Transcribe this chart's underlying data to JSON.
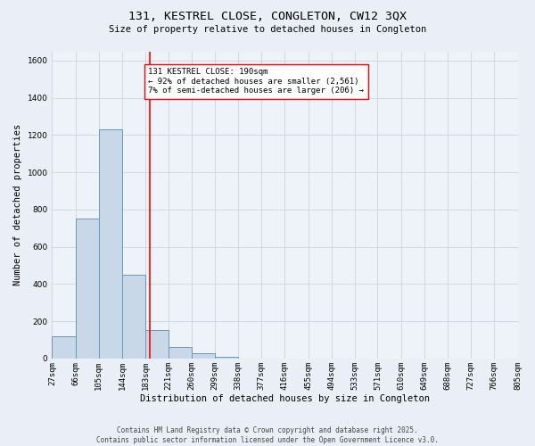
{
  "title": "131, KESTREL CLOSE, CONGLETON, CW12 3QX",
  "subtitle": "Size of property relative to detached houses in Congleton",
  "xlabel": "Distribution of detached houses by size in Congleton",
  "ylabel": "Number of detached properties",
  "bin_edges": [
    27,
    66,
    105,
    144,
    183,
    221,
    260,
    299,
    338,
    377,
    416,
    455,
    494,
    533,
    571,
    610,
    649,
    688,
    727,
    766,
    805
  ],
  "bin_labels": [
    "27sqm",
    "66sqm",
    "105sqm",
    "144sqm",
    "183sqm",
    "221sqm",
    "260sqm",
    "299sqm",
    "338sqm",
    "377sqm",
    "416sqm",
    "455sqm",
    "494sqm",
    "533sqm",
    "571sqm",
    "610sqm",
    "649sqm",
    "688sqm",
    "727sqm",
    "766sqm",
    "805sqm"
  ],
  "counts": [
    120,
    750,
    1230,
    450,
    155,
    60,
    30,
    10,
    0,
    0,
    0,
    0,
    0,
    0,
    0,
    0,
    0,
    0,
    0,
    0
  ],
  "bar_color": "#c8d8e8",
  "bar_edge_color": "#6699bb",
  "vline_x": 190,
  "vline_color": "red",
  "annotation_text": "131 KESTREL CLOSE: 190sqm\n← 92% of detached houses are smaller (2,561)\n7% of semi-detached houses are larger (206) →",
  "annotation_box_color": "white",
  "annotation_box_edge_color": "red",
  "ylim": [
    0,
    1650
  ],
  "bg_color": "#eaeff7",
  "plot_bg_color": "#eef2f9",
  "grid_color": "#c5ccda",
  "footnote": "Contains HM Land Registry data © Crown copyright and database right 2025.\nContains public sector information licensed under the Open Government Licence v3.0.",
  "title_fontsize": 9.5,
  "subtitle_fontsize": 7.5,
  "ylabel_fontsize": 7.5,
  "xlabel_fontsize": 7.5,
  "tick_fontsize": 6.5,
  "annot_fontsize": 6.5,
  "footnote_fontsize": 5.5
}
